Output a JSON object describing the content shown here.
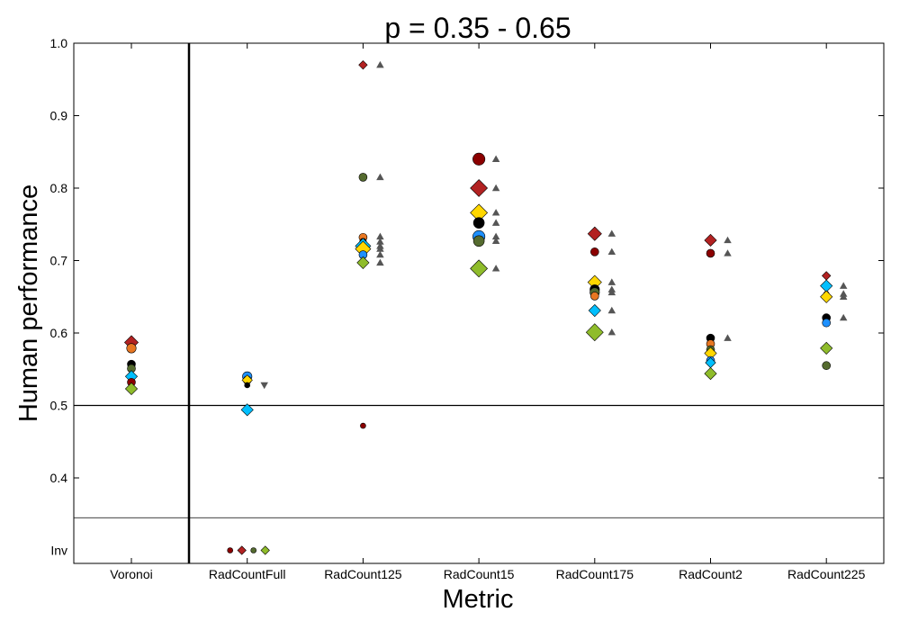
{
  "chart_data": {
    "type": "scatter",
    "title": "p = 0.35 - 0.65",
    "xlabel": "Metric",
    "ylabel": "Human performance",
    "ylim": [
      0.33,
      1.0
    ],
    "yticks": [
      0.4,
      0.5,
      0.6,
      0.7,
      0.8,
      0.9,
      1.0
    ],
    "ytick_labels": [
      "0.4",
      "0.5",
      "0.6",
      "0.7",
      "0.8",
      "0.9",
      "1.0"
    ],
    "inv_label": "Inv",
    "inv_value": 0.3,
    "categories": [
      "Voronoi",
      "RadCountFull",
      "RadCount125",
      "RadCount15",
      "RadCount175",
      "RadCount2",
      "RadCount225"
    ],
    "reference_lines": [
      0.5,
      0.345
    ],
    "colors": {
      "red": "#b22222",
      "darkred": "#8b0000",
      "orange": "#e87722",
      "gold": "#ffd700",
      "black": "#000000",
      "blue": "#1e90ff",
      "cyan": "#00bfff",
      "olive": "#556b2f",
      "lime": "#8fbc2b",
      "gray": "#555555"
    },
    "points": [
      {
        "category": "Voronoi",
        "value": 0.587,
        "color": "red",
        "marker": "diamond",
        "size": 8
      },
      {
        "category": "Voronoi",
        "value": 0.579,
        "color": "orange",
        "marker": "circle",
        "size": 7
      },
      {
        "category": "Voronoi",
        "value": 0.557,
        "color": "black",
        "marker": "circle",
        "size": 6
      },
      {
        "category": "Voronoi",
        "value": 0.551,
        "color": "olive",
        "marker": "circle",
        "size": 6
      },
      {
        "category": "Voronoi",
        "value": 0.54,
        "color": "cyan",
        "marker": "diamond",
        "size": 7
      },
      {
        "category": "Voronoi",
        "value": 0.532,
        "color": "darkred",
        "marker": "circle",
        "size": 6
      },
      {
        "category": "Voronoi",
        "value": 0.523,
        "color": "lime",
        "marker": "diamond",
        "size": 7
      },
      {
        "category": "RadCountFull",
        "value": 0.54,
        "color": "blue",
        "marker": "circle",
        "size": 7
      },
      {
        "category": "RadCountFull",
        "value": 0.535,
        "color": "orange",
        "marker": "circle",
        "size": 6
      },
      {
        "category": "RadCountFull",
        "value": 0.535,
        "color": "gold",
        "marker": "diamond",
        "size": 6
      },
      {
        "category": "RadCountFull",
        "value": 0.528,
        "color": "black",
        "marker": "circle",
        "size": 4
      },
      {
        "category": "RadCountFull",
        "value": 0.528,
        "color": "gray",
        "marker": "tri-down",
        "size": 5,
        "offset": 1
      },
      {
        "category": "RadCountFull",
        "value": 0.494,
        "color": "cyan",
        "marker": "diamond",
        "size": 7
      },
      {
        "category": "RadCountFull",
        "value": 0.3,
        "color": "darkred",
        "marker": "circle",
        "size": 4,
        "dx": -19
      },
      {
        "category": "RadCountFull",
        "value": 0.3,
        "color": "red",
        "marker": "diamond",
        "size": 5,
        "dx": -6
      },
      {
        "category": "RadCountFull",
        "value": 0.3,
        "color": "olive",
        "marker": "circle",
        "size": 4,
        "dx": 7
      },
      {
        "category": "RadCountFull",
        "value": 0.3,
        "color": "lime",
        "marker": "diamond",
        "size": 5,
        "dx": 20
      },
      {
        "category": "RadCount125",
        "value": 0.97,
        "color": "red",
        "marker": "diamond",
        "size": 5
      },
      {
        "category": "RadCount125",
        "value": 0.97,
        "color": "gray",
        "marker": "tri-up",
        "size": 5,
        "offset": 1
      },
      {
        "category": "RadCount125",
        "value": 0.815,
        "color": "olive",
        "marker": "circle",
        "size": 6
      },
      {
        "category": "RadCount125",
        "value": 0.815,
        "color": "gray",
        "marker": "tri-up",
        "size": 5,
        "offset": 1
      },
      {
        "category": "RadCount125",
        "value": 0.732,
        "color": "orange",
        "marker": "circle",
        "size": 6
      },
      {
        "category": "RadCount125",
        "value": 0.726,
        "color": "black",
        "marker": "circle",
        "size": 5
      },
      {
        "category": "RadCount125",
        "value": 0.72,
        "color": "cyan",
        "marker": "diamond",
        "size": 9
      },
      {
        "category": "RadCount125",
        "value": 0.716,
        "color": "gold",
        "marker": "diamond",
        "size": 9
      },
      {
        "category": "RadCount125",
        "value": 0.708,
        "color": "blue",
        "marker": "circle",
        "size": 6
      },
      {
        "category": "RadCount125",
        "value": 0.697,
        "color": "lime",
        "marker": "diamond",
        "size": 7
      },
      {
        "category": "RadCount125",
        "value": 0.733,
        "color": "gray",
        "marker": "tri-up",
        "size": 5,
        "offset": 1
      },
      {
        "category": "RadCount125",
        "value": 0.726,
        "color": "gray",
        "marker": "tri-up",
        "size": 5,
        "offset": 1
      },
      {
        "category": "RadCount125",
        "value": 0.72,
        "color": "gray",
        "marker": "tri-up",
        "size": 5,
        "offset": 1
      },
      {
        "category": "RadCount125",
        "value": 0.716,
        "color": "gray",
        "marker": "tri-up",
        "size": 5,
        "offset": 1
      },
      {
        "category": "RadCount125",
        "value": 0.708,
        "color": "gray",
        "marker": "tri-up",
        "size": 5,
        "offset": 1
      },
      {
        "category": "RadCount125",
        "value": 0.697,
        "color": "gray",
        "marker": "tri-up",
        "size": 5,
        "offset": 1
      },
      {
        "category": "RadCount125",
        "value": 0.472,
        "color": "darkred",
        "marker": "circle",
        "size": 4
      },
      {
        "category": "RadCount15",
        "value": 0.84,
        "color": "darkred",
        "marker": "circle",
        "size": 9
      },
      {
        "category": "RadCount15",
        "value": 0.8,
        "color": "red",
        "marker": "diamond",
        "size": 10
      },
      {
        "category": "RadCount15",
        "value": 0.766,
        "color": "gold",
        "marker": "diamond",
        "size": 10
      },
      {
        "category": "RadCount15",
        "value": 0.752,
        "color": "black",
        "marker": "circle",
        "size": 8
      },
      {
        "category": "RadCount15",
        "value": 0.733,
        "color": "blue",
        "marker": "circle",
        "size": 9
      },
      {
        "category": "RadCount15",
        "value": 0.727,
        "color": "olive",
        "marker": "circle",
        "size": 8
      },
      {
        "category": "RadCount15",
        "value": 0.689,
        "color": "lime",
        "marker": "diamond",
        "size": 10
      },
      {
        "category": "RadCount15",
        "value": 0.84,
        "color": "gray",
        "marker": "tri-up",
        "size": 5,
        "offset": 1
      },
      {
        "category": "RadCount15",
        "value": 0.8,
        "color": "gray",
        "marker": "tri-up",
        "size": 5,
        "offset": 1
      },
      {
        "category": "RadCount15",
        "value": 0.766,
        "color": "gray",
        "marker": "tri-up",
        "size": 5,
        "offset": 1
      },
      {
        "category": "RadCount15",
        "value": 0.752,
        "color": "gray",
        "marker": "tri-up",
        "size": 5,
        "offset": 1
      },
      {
        "category": "RadCount15",
        "value": 0.733,
        "color": "gray",
        "marker": "tri-up",
        "size": 5,
        "offset": 1
      },
      {
        "category": "RadCount15",
        "value": 0.727,
        "color": "gray",
        "marker": "tri-up",
        "size": 5,
        "offset": 1
      },
      {
        "category": "RadCount15",
        "value": 0.689,
        "color": "gray",
        "marker": "tri-up",
        "size": 5,
        "offset": 1
      },
      {
        "category": "RadCount175",
        "value": 0.737,
        "color": "red",
        "marker": "diamond",
        "size": 8
      },
      {
        "category": "RadCount175",
        "value": 0.712,
        "color": "darkred",
        "marker": "circle",
        "size": 6
      },
      {
        "category": "RadCount175",
        "value": 0.67,
        "color": "gold",
        "marker": "diamond",
        "size": 8
      },
      {
        "category": "RadCount175",
        "value": 0.66,
        "color": "black",
        "marker": "circle",
        "size": 7
      },
      {
        "category": "RadCount175",
        "value": 0.656,
        "color": "olive",
        "marker": "circle",
        "size": 7
      },
      {
        "category": "RadCount175",
        "value": 0.651,
        "color": "orange",
        "marker": "circle",
        "size": 6
      },
      {
        "category": "RadCount175",
        "value": 0.631,
        "color": "cyan",
        "marker": "diamond",
        "size": 7
      },
      {
        "category": "RadCount175",
        "value": 0.601,
        "color": "lime",
        "marker": "diamond",
        "size": 10
      },
      {
        "category": "RadCount175",
        "value": 0.737,
        "color": "gray",
        "marker": "tri-up",
        "size": 5,
        "offset": 1
      },
      {
        "category": "RadCount175",
        "value": 0.712,
        "color": "gray",
        "marker": "tri-up",
        "size": 5,
        "offset": 1
      },
      {
        "category": "RadCount175",
        "value": 0.67,
        "color": "gray",
        "marker": "tri-up",
        "size": 5,
        "offset": 1
      },
      {
        "category": "RadCount175",
        "value": 0.66,
        "color": "gray",
        "marker": "tri-up",
        "size": 5,
        "offset": 1
      },
      {
        "category": "RadCount175",
        "value": 0.656,
        "color": "gray",
        "marker": "tri-up",
        "size": 5,
        "offset": 1
      },
      {
        "category": "RadCount175",
        "value": 0.631,
        "color": "gray",
        "marker": "tri-up",
        "size": 5,
        "offset": 1
      },
      {
        "category": "RadCount175",
        "value": 0.601,
        "color": "gray",
        "marker": "tri-up",
        "size": 5,
        "offset": 1
      },
      {
        "category": "RadCount2",
        "value": 0.728,
        "color": "red",
        "marker": "diamond",
        "size": 7
      },
      {
        "category": "RadCount2",
        "value": 0.71,
        "color": "darkred",
        "marker": "circle",
        "size": 6
      },
      {
        "category": "RadCount2",
        "value": 0.593,
        "color": "black",
        "marker": "circle",
        "size": 6
      },
      {
        "category": "RadCount2",
        "value": 0.585,
        "color": "orange",
        "marker": "circle",
        "size": 6
      },
      {
        "category": "RadCount2",
        "value": 0.577,
        "color": "olive",
        "marker": "circle",
        "size": 6
      },
      {
        "category": "RadCount2",
        "value": 0.572,
        "color": "gold",
        "marker": "diamond",
        "size": 7
      },
      {
        "category": "RadCount2",
        "value": 0.562,
        "color": "blue",
        "marker": "circle",
        "size": 6
      },
      {
        "category": "RadCount2",
        "value": 0.559,
        "color": "cyan",
        "marker": "diamond",
        "size": 6
      },
      {
        "category": "RadCount2",
        "value": 0.544,
        "color": "lime",
        "marker": "diamond",
        "size": 7
      },
      {
        "category": "RadCount2",
        "value": 0.728,
        "color": "gray",
        "marker": "tri-up",
        "size": 5,
        "offset": 1
      },
      {
        "category": "RadCount2",
        "value": 0.71,
        "color": "gray",
        "marker": "tri-up",
        "size": 5,
        "offset": 1
      },
      {
        "category": "RadCount2",
        "value": 0.593,
        "color": "gray",
        "marker": "tri-up",
        "size": 5,
        "offset": 1
      },
      {
        "category": "RadCount225",
        "value": 0.679,
        "color": "red",
        "marker": "diamond",
        "size": 5
      },
      {
        "category": "RadCount225",
        "value": 0.665,
        "color": "cyan",
        "marker": "diamond",
        "size": 7
      },
      {
        "category": "RadCount225",
        "value": 0.654,
        "color": "darkred",
        "marker": "circle",
        "size": 4
      },
      {
        "category": "RadCount225",
        "value": 0.65,
        "color": "gold",
        "marker": "diamond",
        "size": 7
      },
      {
        "category": "RadCount225",
        "value": 0.621,
        "color": "black",
        "marker": "circle",
        "size": 6
      },
      {
        "category": "RadCount225",
        "value": 0.614,
        "color": "blue",
        "marker": "circle",
        "size": 6
      },
      {
        "category": "RadCount225",
        "value": 0.579,
        "color": "lime",
        "marker": "diamond",
        "size": 7
      },
      {
        "category": "RadCount225",
        "value": 0.555,
        "color": "olive",
        "marker": "circle",
        "size": 6
      },
      {
        "category": "RadCount225",
        "value": 0.665,
        "color": "gray",
        "marker": "tri-up",
        "size": 5,
        "offset": 1
      },
      {
        "category": "RadCount225",
        "value": 0.654,
        "color": "gray",
        "marker": "tri-up",
        "size": 5,
        "offset": 1
      },
      {
        "category": "RadCount225",
        "value": 0.65,
        "color": "gray",
        "marker": "tri-up",
        "size": 5,
        "offset": 1
      },
      {
        "category": "RadCount225",
        "value": 0.621,
        "color": "gray",
        "marker": "tri-up",
        "size": 5,
        "offset": 1
      }
    ]
  }
}
